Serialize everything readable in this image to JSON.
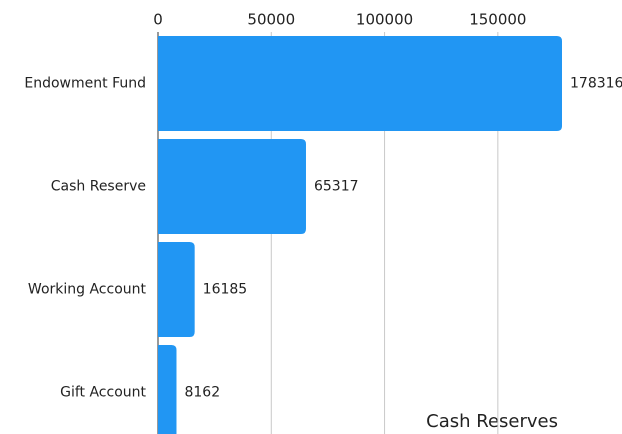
{
  "chart_data": {
    "type": "bar",
    "orientation": "horizontal",
    "categories": [
      "Endowment Fund",
      "Cash Reserve",
      "Working Account",
      "Gift Account"
    ],
    "values": [
      178316,
      65317,
      16185,
      8162
    ],
    "color": "#2196f3",
    "xlabel": "Cash Reserves",
    "xlim": [
      0,
      178316
    ],
    "xticks": [
      0,
      50000,
      100000,
      150000
    ],
    "grid": true
  }
}
